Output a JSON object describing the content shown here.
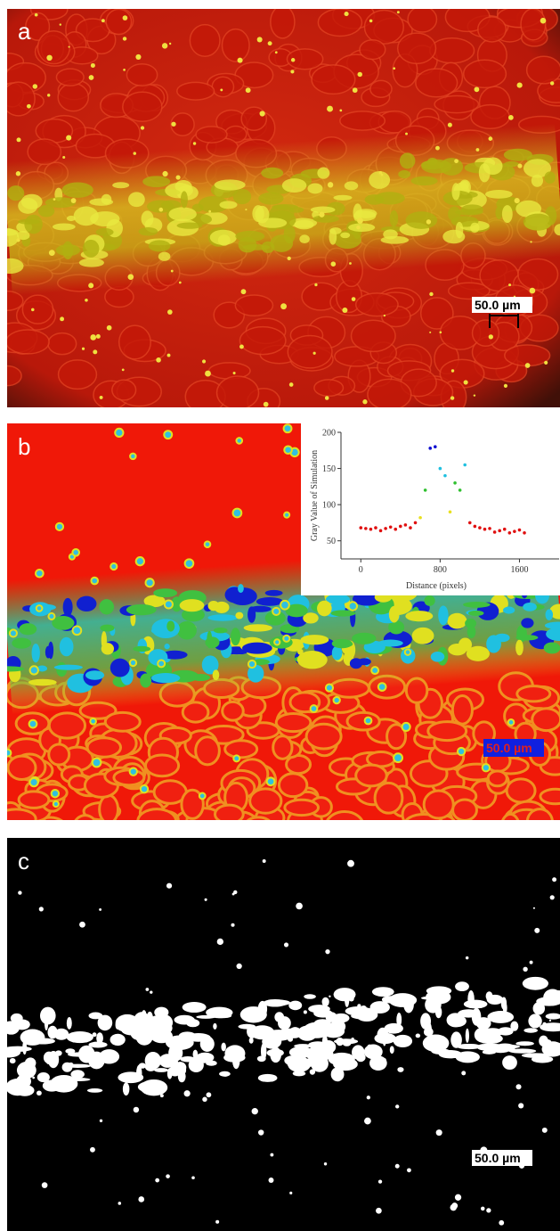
{
  "panels": [
    {
      "label": "a",
      "scale_bar": "50.0 µm"
    },
    {
      "label": "b",
      "scale_bar": "50.0 µm"
    },
    {
      "label": "c",
      "scale_bar": "50.0 µm"
    }
  ],
  "chart_data": {
    "type": "scatter",
    "x_label": "Distance (pixels)",
    "y_label": "Gray Value of Simulation",
    "x": [
      0,
      50,
      100,
      150,
      200,
      250,
      300,
      350,
      400,
      450,
      500,
      550,
      600,
      650,
      700,
      750,
      800,
      850,
      900,
      950,
      1000,
      1050,
      1100,
      1150,
      1200,
      1250,
      1300,
      1350,
      1400,
      1450,
      1500,
      1550,
      1600,
      1650
    ],
    "values": [
      68,
      67,
      66,
      68,
      64,
      67,
      69,
      66,
      70,
      72,
      68,
      75,
      82,
      120,
      178,
      180,
      150,
      140,
      90,
      130,
      120,
      155,
      75,
      70,
      68,
      66,
      67,
      62,
      64,
      66,
      61,
      63,
      65,
      61
    ],
    "colors": [
      "#e01010",
      "#e8e020",
      "#30c030",
      "#20c0e0",
      "#1010d0"
    ],
    "xlim": [
      -200,
      2000
    ],
    "ylim": [
      25,
      200
    ],
    "xticks": [
      0,
      800,
      1600
    ],
    "yticks": [
      50,
      100,
      150,
      200
    ]
  }
}
